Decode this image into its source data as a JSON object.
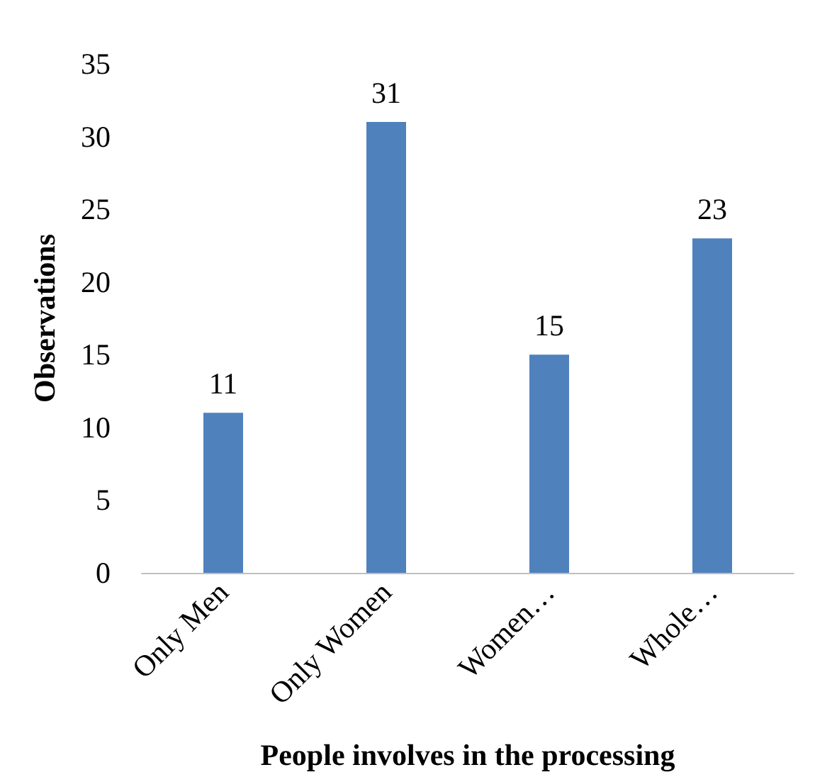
{
  "chart_data": {
    "type": "bar",
    "xlabel": "People involves in the processing",
    "ylabel": "Observations",
    "categories": [
      "Only Men",
      "Only Women",
      "Women…",
      "Whole…"
    ],
    "values": [
      11,
      31,
      15,
      23
    ],
    "color": "#4f81bd",
    "ylim": [
      0,
      35
    ],
    "yticks": [
      0,
      5,
      10,
      15,
      20,
      25,
      30,
      35
    ],
    "grid": false,
    "data_labels": true
  }
}
